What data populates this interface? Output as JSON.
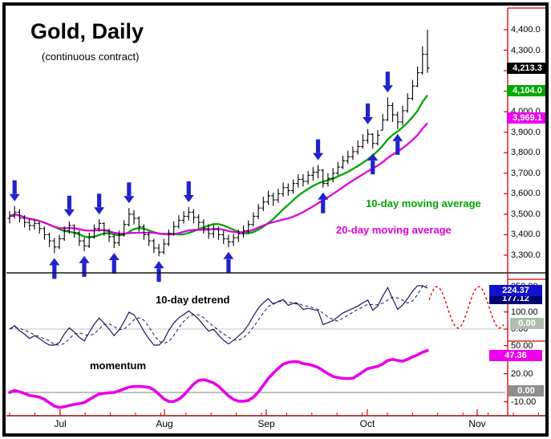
{
  "labels": {
    "ma10_legend": "10-day moving average",
    "ma20_legend": "20-day moving average",
    "detrend_label": "10-day detrend",
    "momentum_label": "momentum"
  },
  "badges": {
    "last_price": {
      "text": "4,213.3",
      "value": 4213.3,
      "bg": "#000000"
    },
    "ma10": {
      "text": "4,104.0",
      "value": 4104.0,
      "bg": "#00a800"
    },
    "ma20": {
      "text": "3,969.1",
      "value": 3969.1,
      "bg": "#ee00ee"
    },
    "detrend": {
      "text": "224.37",
      "value": 224.37,
      "bg": "#1212cc"
    },
    "detrend_prev": {
      "text": "177.12",
      "value": 177.12,
      "bg": "#000070"
    },
    "detrend_zero": {
      "text": "0.00",
      "value": 0,
      "bg": "#aebfae"
    },
    "momentum": {
      "text": "47.36",
      "value": 47.36,
      "bg": "#ee00ee"
    },
    "momentum_zero": {
      "text": "0.00",
      "value": 0,
      "bg": "#8f8f8f"
    }
  },
  "colors": {
    "ma10_line": "#00a500",
    "ma20_line": "#dd00dd",
    "bar": "#000000",
    "arrow": "#2222cc",
    "axis_red": "#d40000",
    "detrend_line": "#1a1a60",
    "detrend_zero_line": "#bccabc",
    "momentum_line": "#e800e8",
    "momentum_zero_line": "#808080",
    "projection_dashed": "#e00000",
    "time_axis": "#a03030",
    "panel_divider": "#1a1a1a"
  },
  "chart_data": {
    "type": "ohlc",
    "title": "Gold, Daily",
    "subtitle": "(continuous contract)",
    "x_axis": {
      "months": [
        "Jul",
        "Aug",
        "Sep",
        "Oct",
        "Nov"
      ]
    },
    "price_axis": {
      "tick_labels": [
        "4,400.0",
        "4,300.0",
        "4,200.0",
        "4,100.0",
        "4,000.0",
        "3,900.0",
        "3,800.0",
        "3,700.0",
        "3,600.0",
        "3,500.0",
        "3,400.0",
        "3,300.0"
      ],
      "tick_values": [
        4400,
        4300,
        4200,
        4100,
        4000,
        3900,
        3800,
        3700,
        3600,
        3500,
        3400,
        3300
      ]
    },
    "last_close": 4213.3,
    "ma10_last": 4104.0,
    "ma20_last": 3969.1,
    "bars_format": [
      "high",
      "low",
      "close"
    ],
    "bars": [
      [
        3515,
        3455,
        3490
      ],
      [
        3540,
        3480,
        3510
      ],
      [
        3525,
        3460,
        3480
      ],
      [
        3495,
        3435,
        3460
      ],
      [
        3480,
        3420,
        3445
      ],
      [
        3475,
        3425,
        3455
      ],
      [
        3465,
        3405,
        3430
      ],
      [
        3440,
        3375,
        3400
      ],
      [
        3410,
        3340,
        3370
      ],
      [
        3385,
        3310,
        3340
      ],
      [
        3400,
        3330,
        3380
      ],
      [
        3440,
        3370,
        3420
      ],
      [
        3465,
        3405,
        3445
      ],
      [
        3450,
        3385,
        3410
      ],
      [
        3420,
        3345,
        3370
      ],
      [
        3385,
        3320,
        3345
      ],
      [
        3410,
        3335,
        3390
      ],
      [
        3450,
        3380,
        3430
      ],
      [
        3475,
        3415,
        3455
      ],
      [
        3460,
        3395,
        3420
      ],
      [
        3430,
        3365,
        3390
      ],
      [
        3400,
        3335,
        3360
      ],
      [
        3420,
        3345,
        3400
      ],
      [
        3470,
        3390,
        3450
      ],
      [
        3530,
        3440,
        3500
      ],
      [
        3520,
        3450,
        3480
      ],
      [
        3490,
        3415,
        3440
      ],
      [
        3450,
        3375,
        3400
      ],
      [
        3415,
        3345,
        3370
      ],
      [
        3380,
        3310,
        3335
      ],
      [
        3355,
        3295,
        3315
      ],
      [
        3380,
        3305,
        3355
      ],
      [
        3425,
        3345,
        3405
      ],
      [
        3465,
        3395,
        3440
      ],
      [
        3495,
        3430,
        3470
      ],
      [
        3515,
        3455,
        3490
      ],
      [
        3535,
        3470,
        3510
      ],
      [
        3525,
        3455,
        3485
      ],
      [
        3500,
        3430,
        3460
      ],
      [
        3475,
        3405,
        3430
      ],
      [
        3450,
        3380,
        3405
      ],
      [
        3450,
        3385,
        3425
      ],
      [
        3440,
        3375,
        3400
      ],
      [
        3420,
        3355,
        3380
      ],
      [
        3400,
        3340,
        3365
      ],
      [
        3405,
        3345,
        3385
      ],
      [
        3425,
        3365,
        3405
      ],
      [
        3445,
        3385,
        3420
      ],
      [
        3470,
        3405,
        3450
      ],
      [
        3510,
        3440,
        3490
      ],
      [
        3550,
        3475,
        3530
      ],
      [
        3585,
        3515,
        3560
      ],
      [
        3615,
        3545,
        3590
      ],
      [
        3605,
        3540,
        3570
      ],
      [
        3625,
        3555,
        3600
      ],
      [
        3655,
        3585,
        3630
      ],
      [
        3650,
        3590,
        3615
      ],
      [
        3670,
        3600,
        3650
      ],
      [
        3695,
        3630,
        3670
      ],
      [
        3695,
        3635,
        3660
      ],
      [
        3710,
        3645,
        3690
      ],
      [
        3730,
        3665,
        3705
      ],
      [
        3740,
        3675,
        3715
      ],
      [
        3720,
        3630,
        3650
      ],
      [
        3700,
        3635,
        3675
      ],
      [
        3725,
        3655,
        3700
      ],
      [
        3755,
        3690,
        3730
      ],
      [
        3785,
        3720,
        3760
      ],
      [
        3810,
        3745,
        3780
      ],
      [
        3830,
        3765,
        3805
      ],
      [
        3860,
        3790,
        3830
      ],
      [
        3890,
        3820,
        3860
      ],
      [
        3915,
        3845,
        3890
      ],
      [
        3895,
        3820,
        3845
      ],
      [
        3910,
        3835,
        3885
      ],
      [
        3990,
        3910,
        3960
      ],
      [
        4070,
        3955,
        4030
      ],
      [
        4045,
        3950,
        3985
      ],
      [
        4000,
        3915,
        3950
      ],
      [
        4030,
        3935,
        4005
      ],
      [
        4090,
        3995,
        4065
      ],
      [
        4155,
        4055,
        4125
      ],
      [
        4220,
        4120,
        4190
      ],
      [
        4320,
        4180,
        4280
      ],
      [
        4400,
        4190,
        4213.3
      ]
    ],
    "signals": {
      "sell_arrows_at_bars": [
        1,
        12,
        18,
        24,
        36,
        62,
        72,
        76
      ],
      "buy_arrows_at_bars": [
        9,
        15,
        21,
        30,
        44,
        63,
        73,
        78
      ]
    },
    "indicators": {
      "detrend": {
        "label": "10-day detrend",
        "last": 224.37,
        "prev_shown": 177.12,
        "tick_labels": [
          "250.00",
          "100.00",
          "0.00"
        ],
        "tick_values": [
          250,
          100,
          0
        ],
        "projection": "dashed-red-cycle-forecast"
      },
      "momentum": {
        "label": "momentum",
        "last": 47.36,
        "tick_labels": [
          "50.00",
          "20.00",
          "-10.00"
        ],
        "tick_values": [
          50,
          20,
          -10
        ]
      }
    }
  }
}
